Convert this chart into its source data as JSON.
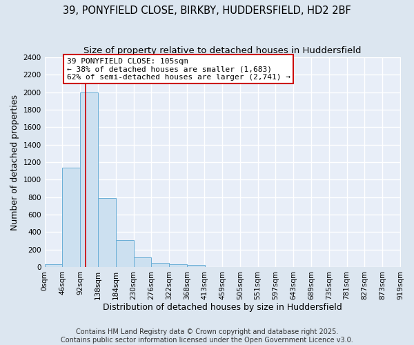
{
  "title_line1": "39, PONYFIELD CLOSE, BIRKBY, HUDDERSFIELD, HD2 2BF",
  "title_line2": "Size of property relative to detached houses in Huddersfield",
  "xlabel": "Distribution of detached houses by size in Huddersfield",
  "ylabel": "Number of detached properties",
  "bar_color": "#cce0f0",
  "bar_edge_color": "#6aaed6",
  "background_color": "#e8eef8",
  "fig_background_color": "#dce6f0",
  "grid_color": "#ffffff",
  "bin_width": 46,
  "bin_starts": [
    0,
    46,
    92,
    138,
    184,
    230,
    276,
    322,
    368,
    413,
    459,
    505,
    551,
    597,
    643,
    689,
    735,
    781,
    827,
    873
  ],
  "bin_labels": [
    "0sqm",
    "46sqm",
    "92sqm",
    "138sqm",
    "184sqm",
    "230sqm",
    "276sqm",
    "322sqm",
    "368sqm",
    "413sqm",
    "459sqm",
    "505sqm",
    "551sqm",
    "597sqm",
    "643sqm",
    "689sqm",
    "735sqm",
    "781sqm",
    "827sqm",
    "873sqm",
    "919sqm"
  ],
  "bar_heights": [
    30,
    1140,
    2000,
    790,
    305,
    108,
    48,
    35,
    20,
    0,
    0,
    0,
    0,
    0,
    0,
    0,
    0,
    0,
    0,
    0
  ],
  "property_size": 105,
  "red_line_color": "#cc0000",
  "annotation_line1": "39 PONYFIELD CLOSE: 105sqm",
  "annotation_line2": "← 38% of detached houses are smaller (1,683)",
  "annotation_line3": "62% of semi-detached houses are larger (2,741) →",
  "annotation_box_color": "#ffffff",
  "annotation_box_edge_color": "#cc0000",
  "ylim": [
    0,
    2400
  ],
  "yticks": [
    0,
    200,
    400,
    600,
    800,
    1000,
    1200,
    1400,
    1600,
    1800,
    2000,
    2200,
    2400
  ],
  "footer_line1": "Contains HM Land Registry data © Crown copyright and database right 2025.",
  "footer_line2": "Contains public sector information licensed under the Open Government Licence v3.0.",
  "title_fontsize": 10.5,
  "subtitle_fontsize": 9.5,
  "axis_label_fontsize": 9,
  "tick_fontsize": 7.5,
  "annotation_fontsize": 8,
  "footer_fontsize": 7
}
